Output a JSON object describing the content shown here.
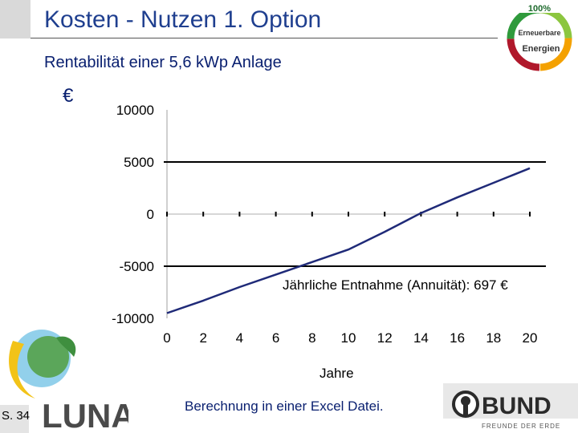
{
  "slide": {
    "title": "Kosten - Nutzen 1. Option",
    "subtitle": "Rentabilität einer 5,6 kWp Anlage",
    "unit_symbol": "€",
    "annotation": "Jährliche Entnahme (Annuität): 697 €",
    "footer_note": "Berechnung in einer Excel Datei.",
    "page_number": "S. 34"
  },
  "logos": {
    "renewables": {
      "line1": "100%",
      "line2": "Erneuerbare",
      "line3": "Energien"
    },
    "luna": {
      "text": "LUNA"
    },
    "bund": {
      "text": "BUND",
      "tagline": "FREUNDE DER ERDE"
    }
  },
  "colors": {
    "title": "#1f3f8f",
    "text_dark_blue": "#0a2070",
    "series_line": "#1f2a78",
    "grid": "#000000"
  },
  "chart_data": {
    "type": "line",
    "xlabel": "Jahre",
    "ylabel": "€",
    "xlim": [
      0,
      20
    ],
    "ylim": [
      -10000,
      10000
    ],
    "x_ticks": [
      0,
      2,
      4,
      6,
      8,
      10,
      12,
      14,
      16,
      18,
      20
    ],
    "y_ticks": [
      -10000,
      -5000,
      0,
      5000,
      10000
    ],
    "y_tick_labels": [
      "-10000",
      "-5000",
      "0",
      "5000",
      "10000"
    ],
    "grid": "horizontal at -5000 and 5000",
    "x": [
      0,
      2,
      4,
      6,
      8,
      10,
      12,
      14,
      16,
      18,
      20
    ],
    "values": [
      -9500,
      -8300,
      -7000,
      -5800,
      -4600,
      -3400,
      -1700,
      100,
      1600,
      3000,
      4400
    ]
  }
}
